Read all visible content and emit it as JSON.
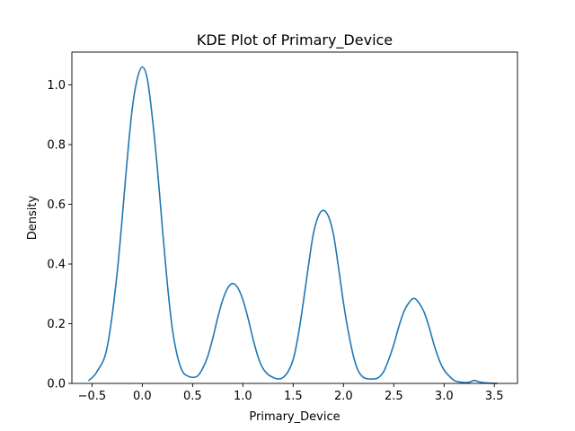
{
  "chart_data": {
    "type": "line",
    "title": "KDE Plot of Primary_Device",
    "xlabel": "Primary_Device",
    "ylabel": "Density",
    "xlim": [
      -0.7,
      3.73
    ],
    "ylim": [
      0,
      1.11
    ],
    "xticks": [
      -0.5,
      0.0,
      0.5,
      1.0,
      1.5,
      2.0,
      2.5,
      3.0,
      3.5
    ],
    "xtick_labels": [
      "−0.5",
      "0.0",
      "0.5",
      "1.0",
      "1.5",
      "2.0",
      "2.5",
      "3.0",
      "3.5"
    ],
    "yticks": [
      0.0,
      0.2,
      0.4,
      0.6,
      0.8,
      1.0
    ],
    "ytick_labels": [
      "0.0",
      "0.2",
      "0.4",
      "0.6",
      "0.8",
      "1.0"
    ],
    "grid": false,
    "legend": null,
    "line_color": "#1f77b4",
    "series": [
      {
        "x": [
          -0.53,
          -0.45,
          -0.35,
          -0.25,
          -0.15,
          -0.1,
          -0.05,
          0.0,
          0.05,
          0.1,
          0.15,
          0.2,
          0.25,
          0.3,
          0.35,
          0.4,
          0.45,
          0.5,
          0.55,
          0.6,
          0.65,
          0.7,
          0.75,
          0.8,
          0.85,
          0.9,
          0.95,
          1.0,
          1.05,
          1.1,
          1.15,
          1.2,
          1.25,
          1.3,
          1.35,
          1.4,
          1.45,
          1.5,
          1.55,
          1.6,
          1.65,
          1.7,
          1.75,
          1.8,
          1.85,
          1.9,
          1.95,
          2.0,
          2.05,
          2.1,
          2.15,
          2.2,
          2.25,
          2.3,
          2.35,
          2.4,
          2.45,
          2.5,
          2.55,
          2.6,
          2.65,
          2.7,
          2.75,
          2.8,
          2.85,
          2.9,
          2.95,
          3.0,
          3.05,
          3.1,
          3.15,
          3.2,
          3.25,
          3.3,
          3.35,
          3.4,
          3.45,
          3.53
        ],
        "y": [
          0.01,
          0.04,
          0.12,
          0.37,
          0.75,
          0.92,
          1.02,
          1.06,
          1.02,
          0.89,
          0.72,
          0.52,
          0.33,
          0.18,
          0.09,
          0.04,
          0.025,
          0.02,
          0.025,
          0.05,
          0.09,
          0.15,
          0.22,
          0.28,
          0.32,
          0.335,
          0.32,
          0.28,
          0.22,
          0.15,
          0.09,
          0.05,
          0.03,
          0.02,
          0.015,
          0.02,
          0.04,
          0.08,
          0.16,
          0.27,
          0.39,
          0.5,
          0.56,
          0.58,
          0.56,
          0.5,
          0.39,
          0.27,
          0.17,
          0.09,
          0.04,
          0.02,
          0.015,
          0.015,
          0.02,
          0.04,
          0.08,
          0.13,
          0.19,
          0.24,
          0.27,
          0.285,
          0.27,
          0.24,
          0.19,
          0.13,
          0.08,
          0.045,
          0.025,
          0.01,
          0.005,
          0.003,
          0.004,
          0.01,
          0.005,
          0.002,
          0.001,
          0.0
        ]
      }
    ]
  }
}
